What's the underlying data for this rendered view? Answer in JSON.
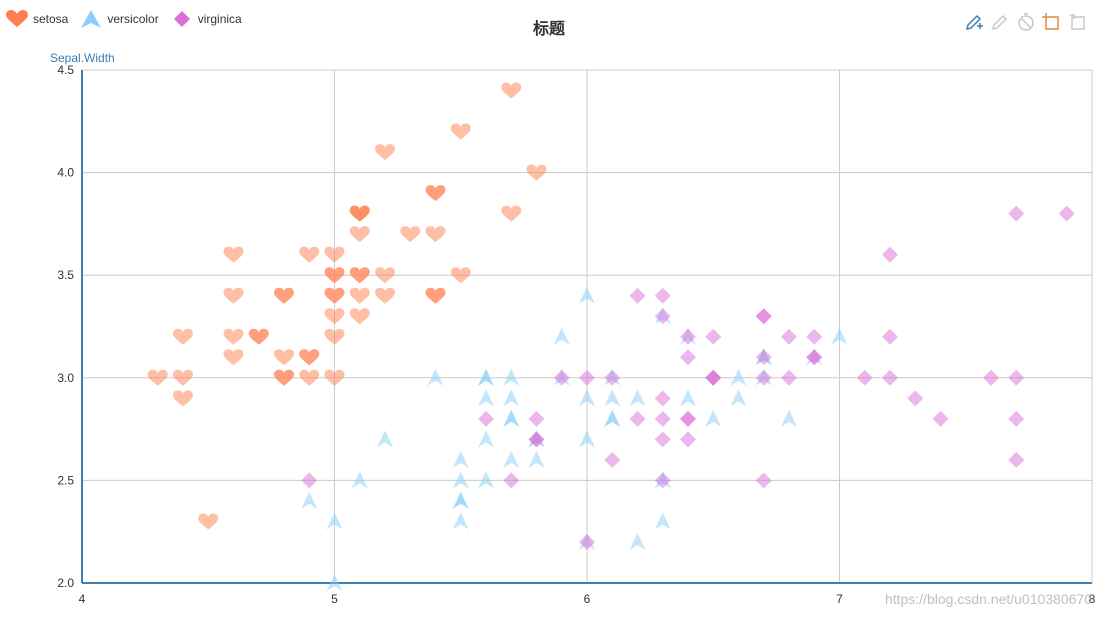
{
  "title": "标题",
  "watermark": "https://blog.csdn.net/u010380670",
  "legend": [
    {
      "name": "setosa",
      "icon": "heart-icon",
      "color": "#ff7f50"
    },
    {
      "name": "versicolor",
      "icon": "arrow-icon",
      "color": "#87cefa"
    },
    {
      "name": "virginica",
      "icon": "diamond-icon",
      "color": "#da70d6"
    }
  ],
  "toolbox": [
    {
      "name": "mark-icon",
      "color": "#3a7fb5"
    },
    {
      "name": "mark-undo-icon",
      "color": "#c8c8c8"
    },
    {
      "name": "mark-clear-icon",
      "color": "#c8c8c8"
    },
    {
      "name": "data-zoom-icon",
      "color": "#e08a3a"
    },
    {
      "name": "data-zoom-reset-icon",
      "color": "#c8c8c8"
    }
  ],
  "chart_data": {
    "type": "scatter",
    "title": "标题",
    "ylabel": "Sepal.Width",
    "xlabel": "",
    "xlim": [
      4,
      8
    ],
    "ylim": [
      2.0,
      4.5
    ],
    "x_ticks": [
      "4",
      "5",
      "6",
      "7",
      "8"
    ],
    "y_ticks": [
      "2.0",
      "2.5",
      "3.0",
      "3.5",
      "4.0",
      "4.5"
    ],
    "grid": true,
    "legend_position": "top-left",
    "series": [
      {
        "name": "setosa",
        "symbol": "heart",
        "color": "#ff7f50",
        "points": [
          [
            5.1,
            3.5
          ],
          [
            4.9,
            3.0
          ],
          [
            4.7,
            3.2
          ],
          [
            4.6,
            3.1
          ],
          [
            5.0,
            3.6
          ],
          [
            5.4,
            3.9
          ],
          [
            4.6,
            3.4
          ],
          [
            5.0,
            3.4
          ],
          [
            4.4,
            2.9
          ],
          [
            4.9,
            3.1
          ],
          [
            5.4,
            3.7
          ],
          [
            4.8,
            3.4
          ],
          [
            4.8,
            3.0
          ],
          [
            4.3,
            3.0
          ],
          [
            5.8,
            4.0
          ],
          [
            5.7,
            4.4
          ],
          [
            5.4,
            3.9
          ],
          [
            5.1,
            3.5
          ],
          [
            5.7,
            3.8
          ],
          [
            5.1,
            3.8
          ],
          [
            5.4,
            3.4
          ],
          [
            5.1,
            3.7
          ],
          [
            4.6,
            3.6
          ],
          [
            5.1,
            3.3
          ],
          [
            4.8,
            3.4
          ],
          [
            5.0,
            3.0
          ],
          [
            5.0,
            3.4
          ],
          [
            5.2,
            3.5
          ],
          [
            5.2,
            3.4
          ],
          [
            4.7,
            3.2
          ],
          [
            4.8,
            3.1
          ],
          [
            5.4,
            3.4
          ],
          [
            5.2,
            4.1
          ],
          [
            5.5,
            4.2
          ],
          [
            4.9,
            3.1
          ],
          [
            5.0,
            3.2
          ],
          [
            5.5,
            3.5
          ],
          [
            4.9,
            3.6
          ],
          [
            4.4,
            3.0
          ],
          [
            5.1,
            3.4
          ],
          [
            5.0,
            3.5
          ],
          [
            4.5,
            2.3
          ],
          [
            4.4,
            3.2
          ],
          [
            5.0,
            3.5
          ],
          [
            5.1,
            3.8
          ],
          [
            4.8,
            3.0
          ],
          [
            5.1,
            3.8
          ],
          [
            4.6,
            3.2
          ],
          [
            5.3,
            3.7
          ],
          [
            5.0,
            3.3
          ]
        ]
      },
      {
        "name": "versicolor",
        "symbol": "arrow",
        "color": "#87cefa",
        "points": [
          [
            7.0,
            3.2
          ],
          [
            6.4,
            3.2
          ],
          [
            6.9,
            3.1
          ],
          [
            5.5,
            2.3
          ],
          [
            6.5,
            2.8
          ],
          [
            5.7,
            2.8
          ],
          [
            6.3,
            3.3
          ],
          [
            4.9,
            2.4
          ],
          [
            6.6,
            2.9
          ],
          [
            5.2,
            2.7
          ],
          [
            5.0,
            2.0
          ],
          [
            5.9,
            3.0
          ],
          [
            6.0,
            2.2
          ],
          [
            6.1,
            2.9
          ],
          [
            5.6,
            2.9
          ],
          [
            6.7,
            3.1
          ],
          [
            5.6,
            3.0
          ],
          [
            5.8,
            2.7
          ],
          [
            6.2,
            2.2
          ],
          [
            5.6,
            2.5
          ],
          [
            5.9,
            3.2
          ],
          [
            6.1,
            2.8
          ],
          [
            6.3,
            2.5
          ],
          [
            6.1,
            2.8
          ],
          [
            6.4,
            2.9
          ],
          [
            6.6,
            3.0
          ],
          [
            6.8,
            2.8
          ],
          [
            6.7,
            3.0
          ],
          [
            6.0,
            2.9
          ],
          [
            5.7,
            2.6
          ],
          [
            5.5,
            2.4
          ],
          [
            5.5,
            2.4
          ],
          [
            5.8,
            2.7
          ],
          [
            6.0,
            2.7
          ],
          [
            5.4,
            3.0
          ],
          [
            6.0,
            3.4
          ],
          [
            6.7,
            3.1
          ],
          [
            6.3,
            2.3
          ],
          [
            5.6,
            3.0
          ],
          [
            5.5,
            2.5
          ],
          [
            5.5,
            2.6
          ],
          [
            6.1,
            3.0
          ],
          [
            5.8,
            2.6
          ],
          [
            5.0,
            2.3
          ],
          [
            5.6,
            2.7
          ],
          [
            5.7,
            3.0
          ],
          [
            5.7,
            2.9
          ],
          [
            6.2,
            2.9
          ],
          [
            5.1,
            2.5
          ],
          [
            5.7,
            2.8
          ]
        ]
      },
      {
        "name": "virginica",
        "symbol": "diamond",
        "color": "#da70d6",
        "points": [
          [
            6.3,
            3.3
          ],
          [
            5.8,
            2.7
          ],
          [
            7.1,
            3.0
          ],
          [
            6.3,
            2.9
          ],
          [
            6.5,
            3.0
          ],
          [
            7.6,
            3.0
          ],
          [
            4.9,
            2.5
          ],
          [
            7.3,
            2.9
          ],
          [
            6.7,
            2.5
          ],
          [
            7.2,
            3.6
          ],
          [
            6.5,
            3.2
          ],
          [
            6.4,
            2.7
          ],
          [
            6.8,
            3.0
          ],
          [
            5.7,
            2.5
          ],
          [
            5.8,
            2.8
          ],
          [
            6.4,
            3.2
          ],
          [
            6.5,
            3.0
          ],
          [
            7.7,
            3.8
          ],
          [
            7.7,
            2.6
          ],
          [
            6.0,
            2.2
          ],
          [
            6.9,
            3.2
          ],
          [
            5.6,
            2.8
          ],
          [
            7.7,
            2.8
          ],
          [
            6.3,
            2.7
          ],
          [
            6.7,
            3.3
          ],
          [
            7.2,
            3.2
          ],
          [
            6.2,
            2.8
          ],
          [
            6.1,
            3.0
          ],
          [
            6.4,
            2.8
          ],
          [
            7.2,
            3.0
          ],
          [
            7.4,
            2.8
          ],
          [
            7.9,
            3.8
          ],
          [
            6.4,
            2.8
          ],
          [
            6.3,
            2.8
          ],
          [
            6.1,
            2.6
          ],
          [
            7.7,
            3.0
          ],
          [
            6.3,
            3.4
          ],
          [
            6.4,
            3.1
          ],
          [
            6.0,
            3.0
          ],
          [
            6.9,
            3.1
          ],
          [
            6.7,
            3.1
          ],
          [
            6.9,
            3.1
          ],
          [
            5.8,
            2.7
          ],
          [
            6.8,
            3.2
          ],
          [
            6.7,
            3.3
          ],
          [
            6.7,
            3.0
          ],
          [
            6.3,
            2.5
          ],
          [
            6.5,
            3.0
          ],
          [
            6.2,
            3.4
          ],
          [
            5.9,
            3.0
          ]
        ]
      }
    ]
  }
}
